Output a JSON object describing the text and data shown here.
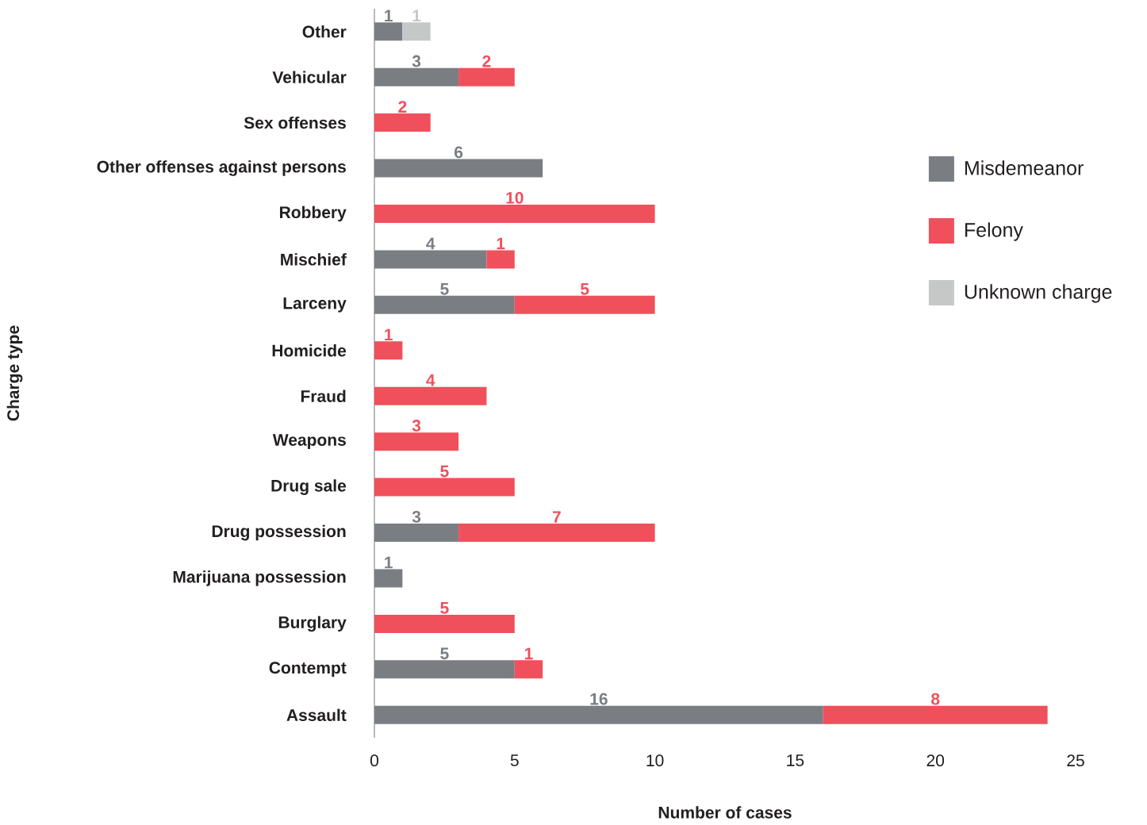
{
  "chart_data": {
    "type": "bar",
    "orientation": "horizontal",
    "stacked": true,
    "data_labels": true,
    "xlabel": "Number of cases",
    "ylabel": "Charge type",
    "categories": [
      "Other",
      "Vehicular",
      "Sex offenses",
      "Other offenses against persons",
      "Robbery",
      "Mischief",
      "Larceny",
      "Homicide",
      "Fraud",
      "Weapons",
      "Drug sale",
      "Drug possession",
      "Marijuana possession",
      "Burglary",
      "Contempt",
      "Assault"
    ],
    "series": [
      {
        "name": "Misdemeanor",
        "color": "#7a7e83",
        "values": [
          1,
          3,
          null,
          6,
          null,
          4,
          5,
          null,
          null,
          null,
          null,
          3,
          1,
          null,
          5,
          16
        ]
      },
      {
        "name": "Felony",
        "color": "#f0505b",
        "values": [
          null,
          2,
          2,
          null,
          10,
          1,
          5,
          1,
          4,
          3,
          5,
          7,
          null,
          5,
          1,
          8
        ]
      },
      {
        "name": "Unknown charge",
        "color": "#c6c7c7",
        "values": [
          1,
          null,
          null,
          null,
          null,
          null,
          null,
          null,
          null,
          null,
          null,
          null,
          null,
          null,
          null,
          null
        ]
      }
    ],
    "xlim": [
      0,
      25
    ],
    "xticks": [
      0,
      5,
      10,
      15,
      20,
      25
    ],
    "grid": false,
    "legend": "right"
  }
}
